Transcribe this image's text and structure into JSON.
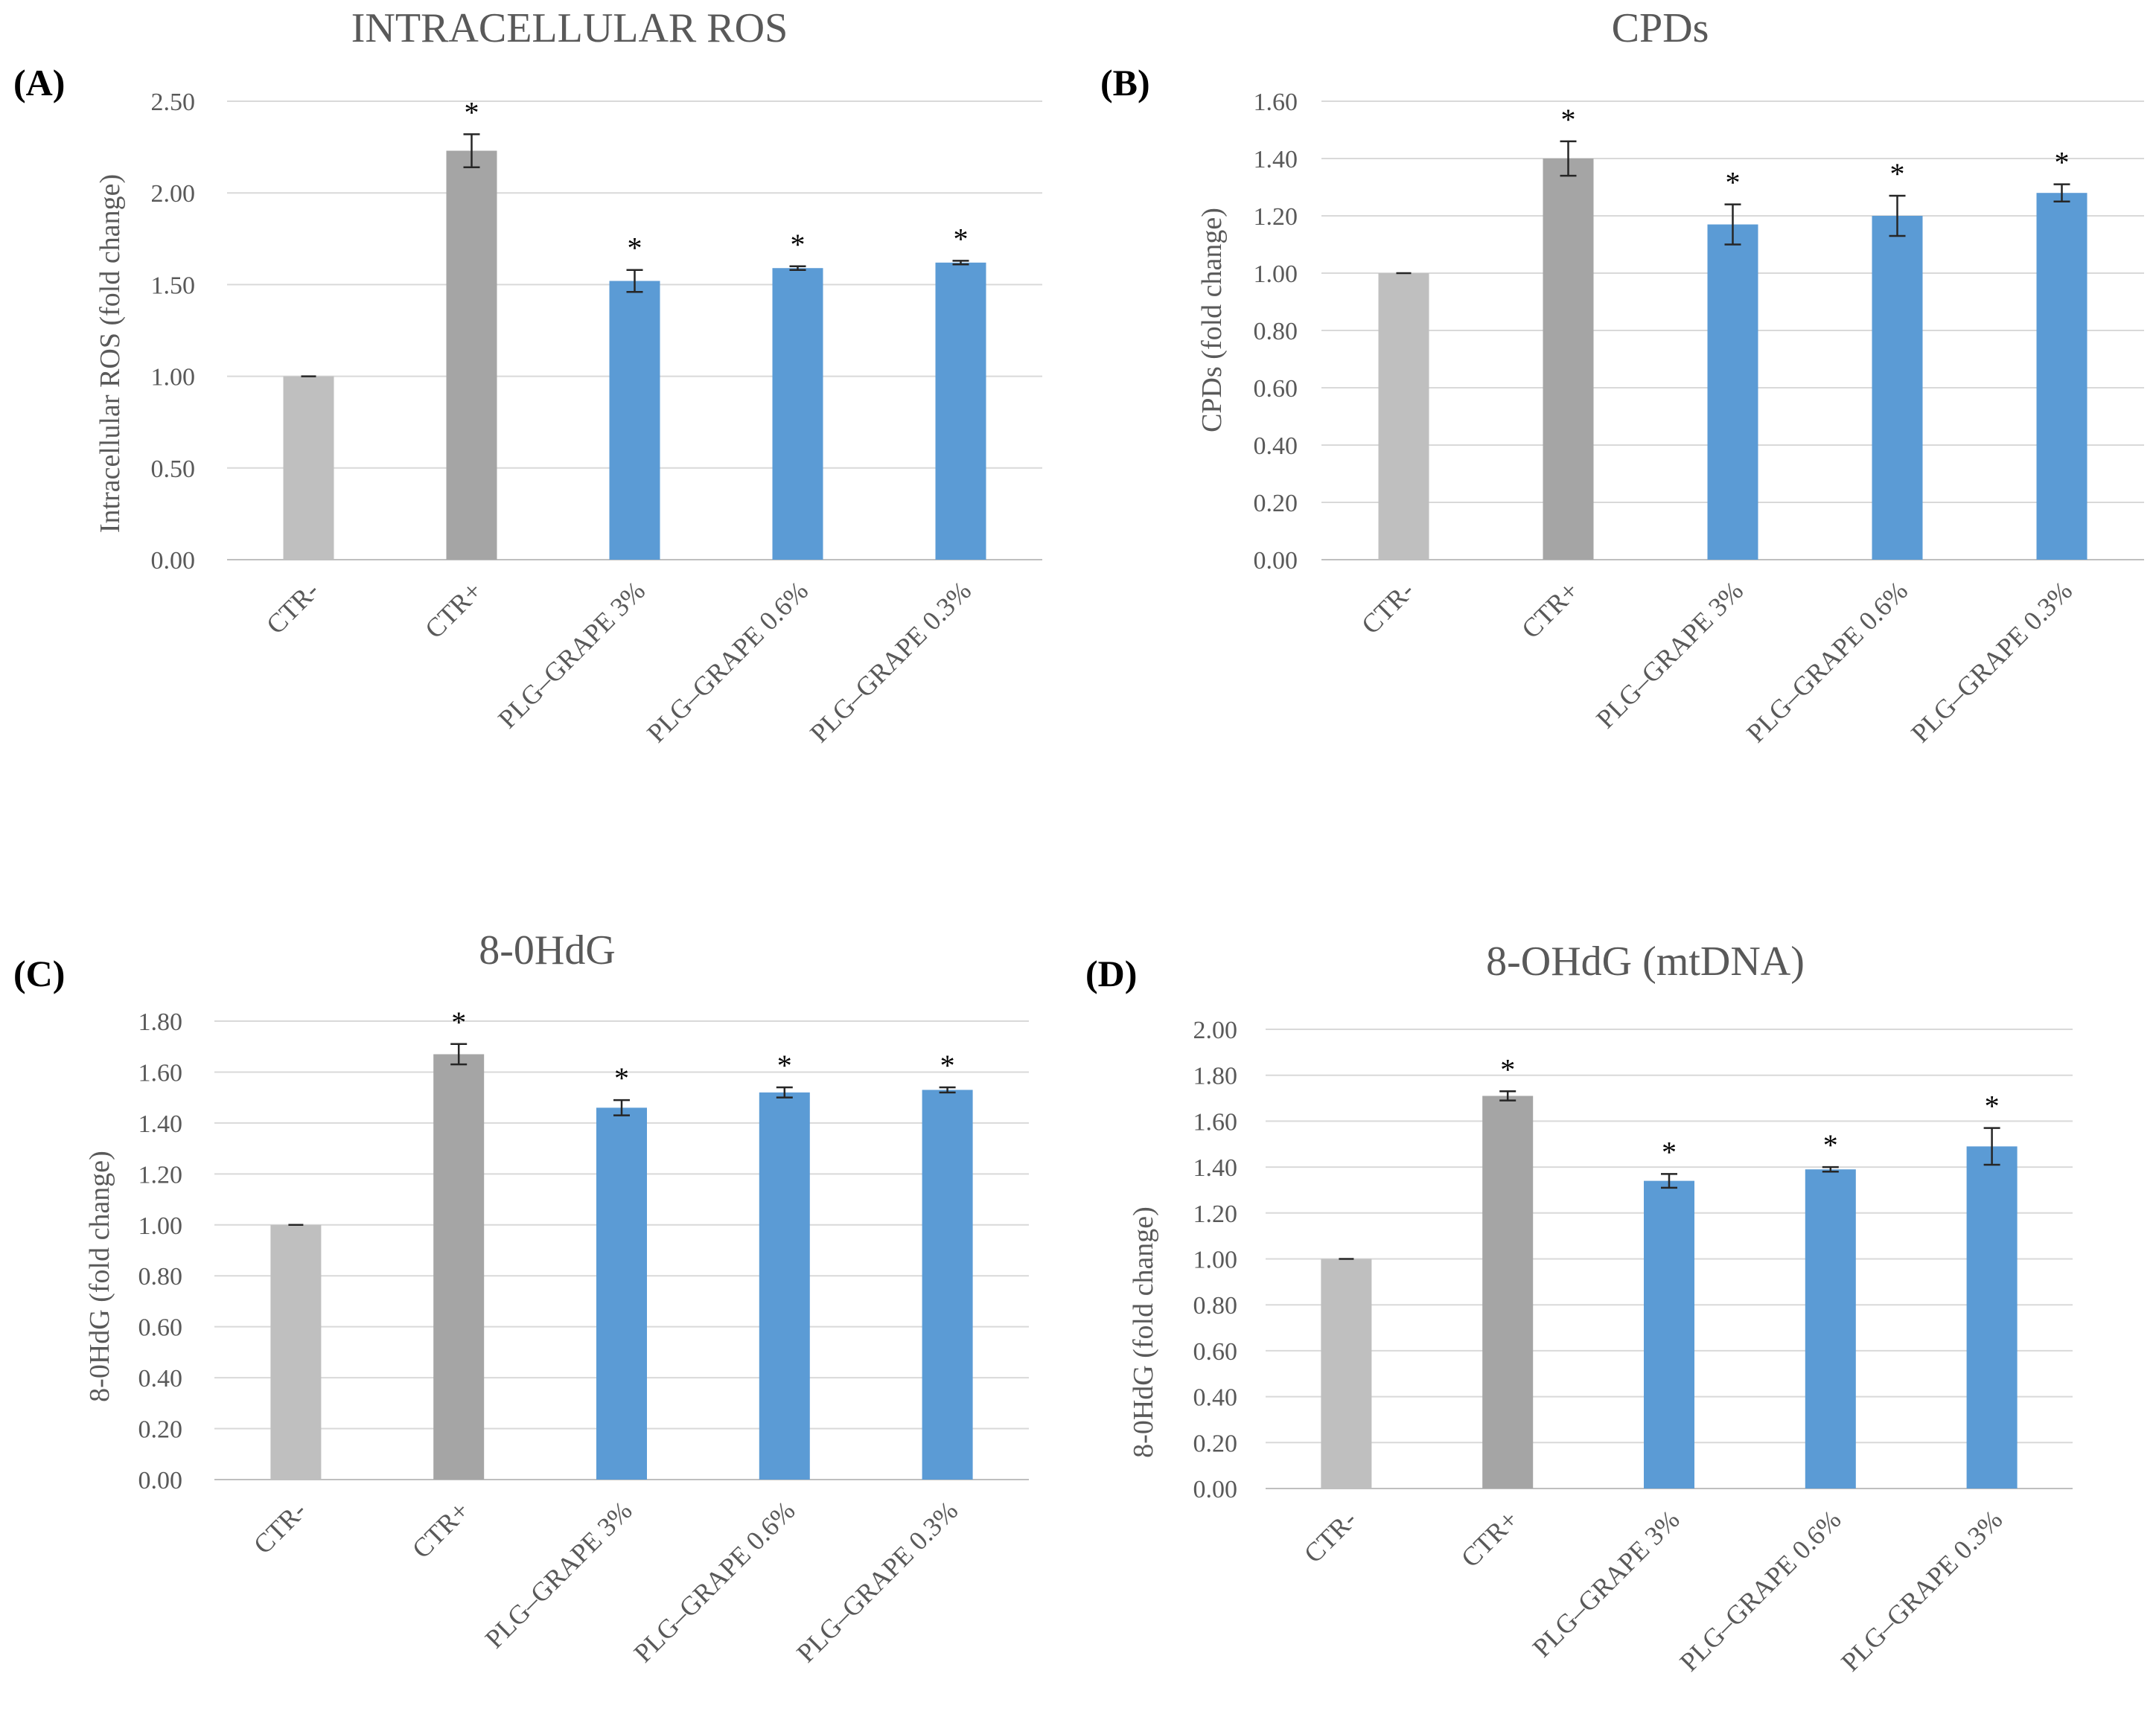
{
  "chart_data": [
    {
      "panel": "(A)",
      "type": "bar",
      "title": "INTRACELLULAR ROS",
      "ylabel": "Intracellular ROS (fold change)",
      "xlabel": "",
      "categories": [
        "CTR-",
        "CTR+",
        "PLG–GRAPE 3%",
        "PLG–GRAPE 0.6%",
        "PLG–GRAPE 0.3%"
      ],
      "values": [
        1.0,
        2.23,
        1.52,
        1.59,
        1.62
      ],
      "errors": [
        0.0,
        0.09,
        0.06,
        0.01,
        0.01
      ],
      "significant": [
        false,
        true,
        true,
        true,
        true
      ],
      "ylim": [
        0,
        2.5
      ],
      "yticks": [
        0,
        0.5,
        1.0,
        1.5,
        2.0,
        2.5
      ],
      "ytick_labels": [
        "0.00",
        "0.50",
        "1.00",
        "1.50",
        "2.00",
        "2.50"
      ],
      "grid": true,
      "colors": [
        "#bfbfbf",
        "#a5a5a5",
        "#5b9bd5",
        "#5b9bd5",
        "#5b9bd5"
      ]
    },
    {
      "panel": "(B)",
      "type": "bar",
      "title": "CPDs",
      "ylabel": "CPDs (fold change)",
      "xlabel": "",
      "categories": [
        "CTR-",
        "CTR+",
        "PLG–GRAPE 3%",
        "PLG–GRAPE 0.6%",
        "PLG–GRAPE 0.3%"
      ],
      "values": [
        1.0,
        1.4,
        1.17,
        1.2,
        1.28
      ],
      "errors": [
        0.0,
        0.06,
        0.07,
        0.07,
        0.03
      ],
      "significant": [
        false,
        true,
        true,
        true,
        true
      ],
      "ylim": [
        0,
        1.6
      ],
      "yticks": [
        0,
        0.2,
        0.4,
        0.6,
        0.8,
        1.0,
        1.2,
        1.4,
        1.6
      ],
      "ytick_labels": [
        "0.00",
        "0.20",
        "0.40",
        "0.60",
        "0.80",
        "1.00",
        "1.20",
        "1.40",
        "1.60"
      ],
      "grid": true,
      "colors": [
        "#bfbfbf",
        "#a5a5a5",
        "#5b9bd5",
        "#5b9bd5",
        "#5b9bd5"
      ]
    },
    {
      "panel": "(C)",
      "type": "bar",
      "title": "8-0HdG",
      "ylabel": "8-0HdG (fold change)",
      "xlabel": "",
      "categories": [
        "CTR-",
        "CTR+",
        "PLG–GRAPE 3%",
        "PLG–GRAPE 0.6%",
        "PLG–GRAPE 0.3%"
      ],
      "values": [
        1.0,
        1.67,
        1.46,
        1.52,
        1.53
      ],
      "errors": [
        0.0,
        0.04,
        0.03,
        0.02,
        0.01
      ],
      "significant": [
        false,
        true,
        true,
        true,
        true
      ],
      "ylim": [
        0,
        1.8
      ],
      "yticks": [
        0,
        0.2,
        0.4,
        0.6,
        0.8,
        1.0,
        1.2,
        1.4,
        1.6,
        1.8
      ],
      "ytick_labels": [
        "0.00",
        "0.20",
        "0.40",
        "0.60",
        "0.80",
        "1.00",
        "1.20",
        "1.40",
        "1.60",
        "1.80"
      ],
      "grid": true,
      "colors": [
        "#bfbfbf",
        "#a5a5a5",
        "#5b9bd5",
        "#5b9bd5",
        "#5b9bd5"
      ]
    },
    {
      "panel": "(D)",
      "type": "bar",
      "title": "8-OHdG (mtDNA)",
      "ylabel": "8-0HdG (fold change)",
      "xlabel": "",
      "categories": [
        "CTR-",
        "CTR+",
        "PLG–GRAPE 3%",
        "PLG–GRAPE 0.6%",
        "PLG–GRAPE 0.3%"
      ],
      "values": [
        1.0,
        1.71,
        1.34,
        1.39,
        1.49
      ],
      "errors": [
        0.0,
        0.02,
        0.03,
        0.01,
        0.08
      ],
      "significant": [
        false,
        true,
        true,
        true,
        true
      ],
      "ylim": [
        0,
        2.0
      ],
      "yticks": [
        0,
        0.2,
        0.4,
        0.6,
        0.8,
        1.0,
        1.2,
        1.4,
        1.6,
        1.8,
        2.0
      ],
      "ytick_labels": [
        "0.00",
        "0.20",
        "0.40",
        "0.60",
        "0.80",
        "1.00",
        "1.20",
        "1.40",
        "1.60",
        "1.80",
        "2.00"
      ],
      "grid": true,
      "colors": [
        "#bfbfbf",
        "#a5a5a5",
        "#5b9bd5",
        "#5b9bd5",
        "#5b9bd5"
      ]
    }
  ],
  "significance_marker": "*"
}
